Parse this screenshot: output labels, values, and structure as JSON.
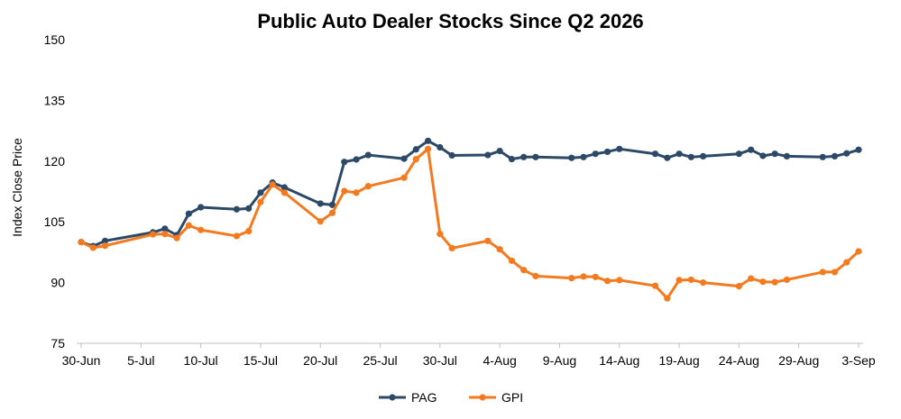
{
  "chart_data": {
    "type": "line",
    "title": "Public Auto Dealer Stocks Since Q2 2026",
    "ylabel": "Index Close Price",
    "xlabel": "",
    "ylim": [
      75,
      150
    ],
    "yticks": [
      75,
      90,
      105,
      120,
      135,
      150
    ],
    "xlim": [
      "2026-06-30",
      "2026-09-03"
    ],
    "xticks": [
      {
        "date": "2026-06-30",
        "label": "30-Jun"
      },
      {
        "date": "2026-07-05",
        "label": "5-Jul"
      },
      {
        "date": "2026-07-10",
        "label": "10-Jul"
      },
      {
        "date": "2026-07-15",
        "label": "15-Jul"
      },
      {
        "date": "2026-07-20",
        "label": "20-Jul"
      },
      {
        "date": "2026-07-25",
        "label": "25-Jul"
      },
      {
        "date": "2026-07-30",
        "label": "30-Jul"
      },
      {
        "date": "2026-08-04",
        "label": "4-Aug"
      },
      {
        "date": "2026-08-09",
        "label": "9-Aug"
      },
      {
        "date": "2026-08-14",
        "label": "14-Aug"
      },
      {
        "date": "2026-08-19",
        "label": "19-Aug"
      },
      {
        "date": "2026-08-24",
        "label": "24-Aug"
      },
      {
        "date": "2026-08-29",
        "label": "29-Aug"
      },
      {
        "date": "2026-09-03",
        "label": "3-Sep"
      }
    ],
    "grid": false,
    "legend_position": "bottom",
    "series": [
      {
        "name": "PAG",
        "color": "#2c4a67",
        "points": [
          [
            "2026-06-30",
            100
          ],
          [
            "2026-07-01",
            99
          ],
          [
            "2026-07-02",
            100.3
          ],
          [
            "2026-07-06",
            102.4
          ],
          [
            "2026-07-07",
            103.3
          ],
          [
            "2026-07-08",
            101.7
          ],
          [
            "2026-07-09",
            107
          ],
          [
            "2026-07-10",
            108.6
          ],
          [
            "2026-07-13",
            108.1
          ],
          [
            "2026-07-14",
            108.3
          ],
          [
            "2026-07-15",
            112.2
          ],
          [
            "2026-07-16",
            114.7
          ],
          [
            "2026-07-17",
            113.5
          ],
          [
            "2026-07-20",
            109.5
          ],
          [
            "2026-07-21",
            109.2
          ],
          [
            "2026-07-22",
            119.8
          ],
          [
            "2026-07-23",
            120.4
          ],
          [
            "2026-07-24",
            121.5
          ],
          [
            "2026-07-27",
            120.6
          ],
          [
            "2026-07-28",
            122.9
          ],
          [
            "2026-07-29",
            125
          ],
          [
            "2026-07-30",
            123.4
          ],
          [
            "2026-07-31",
            121.4
          ],
          [
            "2026-08-03",
            121.5
          ],
          [
            "2026-08-04",
            122.5
          ],
          [
            "2026-08-05",
            120.5
          ],
          [
            "2026-08-06",
            121
          ],
          [
            "2026-08-07",
            121
          ],
          [
            "2026-08-10",
            120.8
          ],
          [
            "2026-08-11",
            121
          ],
          [
            "2026-08-12",
            121.8
          ],
          [
            "2026-08-13",
            122.3
          ],
          [
            "2026-08-14",
            123
          ],
          [
            "2026-08-17",
            121.8
          ],
          [
            "2026-08-18",
            120.8
          ],
          [
            "2026-08-19",
            121.8
          ],
          [
            "2026-08-20",
            121
          ],
          [
            "2026-08-21",
            121.2
          ],
          [
            "2026-08-24",
            121.8
          ],
          [
            "2026-08-25",
            122.8
          ],
          [
            "2026-08-26",
            121.3
          ],
          [
            "2026-08-27",
            121.8
          ],
          [
            "2026-08-28",
            121.2
          ],
          [
            "2026-08-31",
            121
          ],
          [
            "2026-09-01",
            121.2
          ],
          [
            "2026-09-02",
            121.9
          ],
          [
            "2026-09-03",
            122.8
          ]
        ]
      },
      {
        "name": "GPI",
        "color": "#f47a20",
        "points": [
          [
            "2026-06-30",
            100
          ],
          [
            "2026-07-01",
            98.6
          ],
          [
            "2026-07-02",
            99.1
          ],
          [
            "2026-07-06",
            101.9
          ],
          [
            "2026-07-07",
            102
          ],
          [
            "2026-07-08",
            101
          ],
          [
            "2026-07-09",
            104.1
          ],
          [
            "2026-07-10",
            103
          ],
          [
            "2026-07-13",
            101.5
          ],
          [
            "2026-07-14",
            102.7
          ],
          [
            "2026-07-15",
            109.9
          ],
          [
            "2026-07-16",
            114.2
          ],
          [
            "2026-07-17",
            112.2
          ],
          [
            "2026-07-20",
            105.1
          ],
          [
            "2026-07-21",
            107.2
          ],
          [
            "2026-07-22",
            112.6
          ],
          [
            "2026-07-23",
            112.2
          ],
          [
            "2026-07-24",
            113.8
          ],
          [
            "2026-07-27",
            115.9
          ],
          [
            "2026-07-28",
            120.5
          ],
          [
            "2026-07-29",
            123
          ],
          [
            "2026-07-30",
            102
          ],
          [
            "2026-07-31",
            98.5
          ],
          [
            "2026-08-03",
            100.3
          ],
          [
            "2026-08-04",
            98.2
          ],
          [
            "2026-08-05",
            95.4
          ],
          [
            "2026-08-06",
            93.1
          ],
          [
            "2026-08-07",
            91.6
          ],
          [
            "2026-08-10",
            91.1
          ],
          [
            "2026-08-11",
            91.5
          ],
          [
            "2026-08-12",
            91.4
          ],
          [
            "2026-08-13",
            90.4
          ],
          [
            "2026-08-14",
            90.6
          ],
          [
            "2026-08-17",
            89.2
          ],
          [
            "2026-08-18",
            86.1
          ],
          [
            "2026-08-19",
            90.6
          ],
          [
            "2026-08-20",
            90.7
          ],
          [
            "2026-08-21",
            90
          ],
          [
            "2026-08-24",
            89.1
          ],
          [
            "2026-08-25",
            91
          ],
          [
            "2026-08-26",
            90.2
          ],
          [
            "2026-08-27",
            90.1
          ],
          [
            "2026-08-28",
            90.7
          ],
          [
            "2026-08-31",
            92.6
          ],
          [
            "2026-09-01",
            92.6
          ],
          [
            "2026-09-02",
            95
          ],
          [
            "2026-09-03",
            97.7
          ]
        ]
      }
    ]
  }
}
